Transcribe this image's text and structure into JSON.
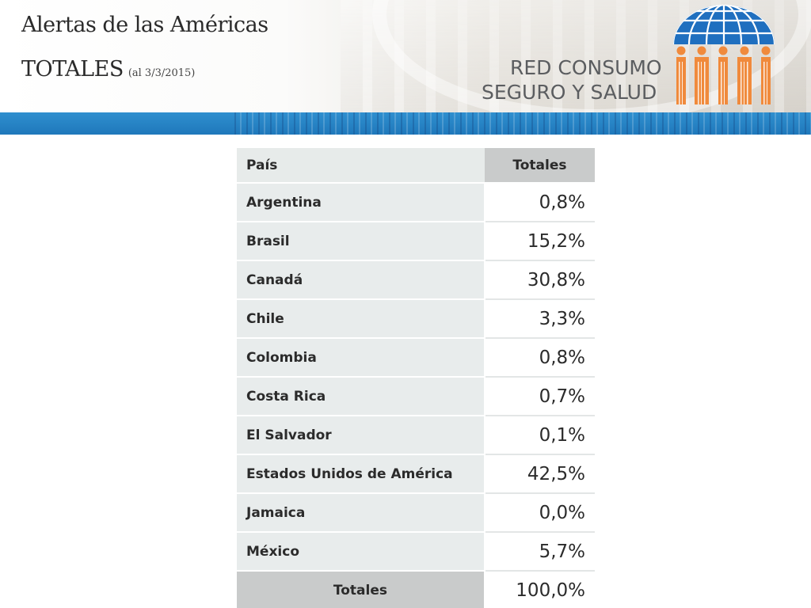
{
  "header": {
    "title": "Alertas de las Américas",
    "subtitle": "TOTALES",
    "date_note": "(al 3/3/2015)",
    "brand_line1": "RED CONSUMO",
    "brand_line2": "SEGURO Y SALUD",
    "colors": {
      "globe_blue": "#1f6fbf",
      "people_orange": "#f08a3c",
      "stripe_blue": "#2a86c8"
    }
  },
  "table": {
    "headers": [
      "País",
      "Totales"
    ],
    "rows": [
      {
        "country": "Argentina",
        "total": "0,8%"
      },
      {
        "country": "Brasil",
        "total": "15,2%"
      },
      {
        "country": "Canadá",
        "total": "30,8%"
      },
      {
        "country": "Chile",
        "total": "3,3%"
      },
      {
        "country": "Colombia",
        "total": "0,8%"
      },
      {
        "country": "Costa Rica",
        "total": "0,7%"
      },
      {
        "country": "El Salvador",
        "total": "0,1%"
      },
      {
        "country": "Estados Unidos de América",
        "total": "42,5%"
      },
      {
        "country": "Jamaica",
        "total": "0,0%"
      },
      {
        "country": "México",
        "total": "5,7%"
      }
    ],
    "footer": {
      "label": "Totales",
      "total": "100,0%"
    }
  }
}
